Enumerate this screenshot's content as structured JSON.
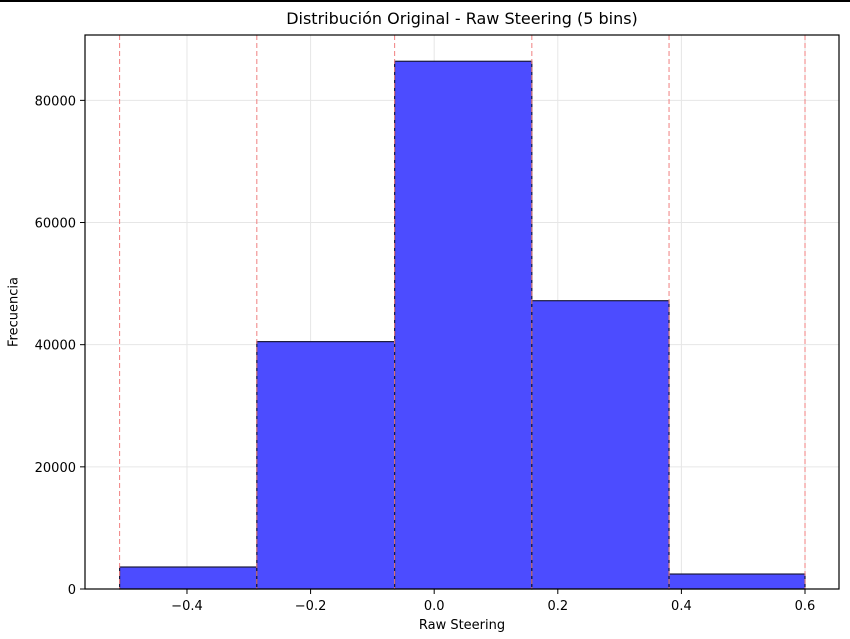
{
  "chart_data": {
    "type": "bar",
    "subtype": "histogram",
    "title": "Distribución Original - Raw Steering (5 bins)",
    "xlabel": "Raw Steering",
    "ylabel": "Frecuencia",
    "bin_edges": [
      -0.509,
      -0.287,
      -0.064,
      0.158,
      0.38,
      0.6
    ],
    "categories": [
      "[-0.509, -0.287)",
      "[-0.287, -0.064)",
      "[-0.064, 0.158)",
      "[0.158, 0.380)",
      "[0.380, 0.600]"
    ],
    "values": [
      3600,
      40500,
      86400,
      47200,
      2450
    ],
    "xlim": [
      -0.565,
      0.655
    ],
    "ylim": [
      0,
      90700
    ],
    "x_ticks": [
      -0.4,
      -0.2,
      0.0,
      0.2,
      0.4,
      0.6
    ],
    "x_tick_labels": [
      "−0.4",
      "−0.2",
      "0.0",
      "0.2",
      "0.4",
      "0.6"
    ],
    "y_ticks": [
      0,
      20000,
      40000,
      60000,
      80000
    ],
    "y_tick_labels": [
      "0",
      "20000",
      "40000",
      "60000",
      "80000"
    ],
    "grid": true,
    "bin_edge_lines": "red dashed vertical lines at each bin edge",
    "colors": {
      "bar_fill": "#4c4cff",
      "bar_edge": "#1a1a3a",
      "edge_line": "#f08080",
      "grid": "#e6e6e6"
    },
    "legend": null
  }
}
